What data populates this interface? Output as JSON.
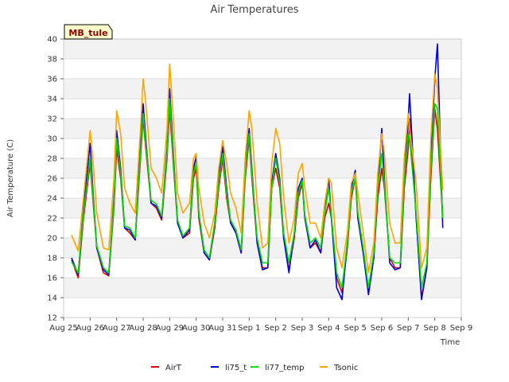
{
  "chart_data": {
    "type": "line",
    "title": "Air Temperatures",
    "xlabel": "Time",
    "ylabel": "Air Temperature (C)",
    "site_tag": "MB_tule",
    "ylim": [
      12,
      40
    ],
    "yticks": [
      12,
      14,
      16,
      18,
      20,
      22,
      24,
      26,
      28,
      30,
      32,
      34,
      36,
      38,
      40
    ],
    "xlim": [
      0,
      15
    ],
    "xticks": [
      {
        "x": 0,
        "label": "Aug 25"
      },
      {
        "x": 1,
        "label": "Aug 26"
      },
      {
        "x": 2,
        "label": "Aug 27"
      },
      {
        "x": 3,
        "label": "Aug 28"
      },
      {
        "x": 4,
        "label": "Aug 29"
      },
      {
        "x": 5,
        "label": "Aug 30"
      },
      {
        "x": 6,
        "label": "Aug 31"
      },
      {
        "x": 7,
        "label": "Sep 1"
      },
      {
        "x": 8,
        "label": "Sep 2"
      },
      {
        "x": 9,
        "label": "Sep 3"
      },
      {
        "x": 10,
        "label": "Sep 4"
      },
      {
        "x": 11,
        "label": "Sep 5"
      },
      {
        "x": 12,
        "label": "Sep 6"
      },
      {
        "x": 13,
        "label": "Sep 7"
      },
      {
        "x": 14,
        "label": "Sep 8"
      },
      {
        "x": 15,
        "label": "Sep 9"
      }
    ],
    "x_units": "days since Aug 25",
    "grid": "horizontal bands",
    "legend_position": "bottom",
    "series": [
      {
        "name": "AirT",
        "color": "#dd0000",
        "x": [
          0.3,
          0.55,
          0.75,
          1.0,
          1.1,
          1.25,
          1.5,
          1.7,
          1.9,
          2.0,
          2.15,
          2.3,
          2.5,
          2.7,
          2.9,
          3.0,
          3.1,
          3.3,
          3.5,
          3.7,
          3.9,
          4.0,
          4.15,
          4.3,
          4.5,
          4.75,
          4.9,
          5.0,
          5.1,
          5.3,
          5.5,
          5.7,
          5.85,
          6.0,
          6.15,
          6.3,
          6.5,
          6.7,
          6.85,
          7.0,
          7.1,
          7.3,
          7.5,
          7.7,
          7.85,
          8.0,
          8.15,
          8.3,
          8.5,
          8.7,
          8.85,
          9.0,
          9.1,
          9.3,
          9.5,
          9.7,
          9.85,
          10.0,
          10.1,
          10.3,
          10.5,
          10.7,
          10.85,
          11.0,
          11.1,
          11.3,
          11.5,
          11.7,
          11.85,
          12.0,
          12.1,
          12.3,
          12.5,
          12.7,
          12.85,
          13.0,
          13.05,
          13.3,
          13.5,
          13.7,
          13.85,
          14.0,
          14.1,
          14.3
        ],
        "y": [
          17.8,
          16.0,
          22.0,
          27.5,
          24.0,
          19.0,
          16.5,
          16.2,
          23.0,
          29.0,
          26.0,
          21.0,
          20.5,
          19.8,
          28.0,
          32.0,
          29.0,
          23.5,
          23.0,
          21.8,
          28.0,
          33.0,
          27.0,
          21.5,
          20.0,
          20.5,
          26.0,
          27.0,
          22.0,
          18.5,
          17.8,
          21.0,
          25.0,
          28.0,
          24.0,
          21.5,
          20.5,
          18.5,
          26.0,
          30.0,
          26.0,
          19.5,
          17.0,
          17.0,
          25.0,
          27.0,
          25.0,
          20.0,
          16.8,
          20.0,
          24.0,
          25.5,
          22.0,
          19.0,
          19.5,
          18.5,
          22.0,
          23.5,
          22.0,
          16.0,
          14.5,
          19.0,
          24.0,
          26.0,
          22.0,
          18.5,
          14.5,
          18.0,
          24.0,
          27.0,
          25.0,
          18.0,
          17.0,
          17.0,
          25.0,
          29.0,
          32.0,
          22.0,
          14.0,
          17.0,
          26.0,
          33.0,
          31.0,
          22.0
        ]
      },
      {
        "name": "li75_t",
        "color": "#0000dd",
        "x": [
          0.3,
          0.55,
          0.75,
          1.0,
          1.1,
          1.25,
          1.5,
          1.7,
          1.9,
          2.0,
          2.15,
          2.3,
          2.5,
          2.7,
          2.9,
          3.0,
          3.1,
          3.3,
          3.5,
          3.7,
          3.9,
          4.0,
          4.15,
          4.3,
          4.5,
          4.75,
          4.9,
          5.0,
          5.1,
          5.3,
          5.5,
          5.7,
          5.85,
          6.0,
          6.15,
          6.3,
          6.5,
          6.7,
          6.85,
          7.0,
          7.1,
          7.3,
          7.5,
          7.7,
          7.85,
          8.0,
          8.15,
          8.3,
          8.5,
          8.7,
          8.85,
          9.0,
          9.1,
          9.3,
          9.5,
          9.7,
          9.85,
          10.0,
          10.1,
          10.3,
          10.5,
          10.7,
          10.85,
          11.0,
          11.1,
          11.3,
          11.5,
          11.7,
          11.85,
          12.0,
          12.1,
          12.3,
          12.5,
          12.7,
          12.85,
          13.0,
          13.05,
          13.3,
          13.5,
          13.7,
          13.85,
          14.0,
          14.1,
          14.3
        ],
        "y": [
          18.0,
          16.3,
          23.0,
          29.5,
          25.0,
          19.0,
          16.8,
          16.3,
          24.0,
          30.8,
          27.0,
          21.0,
          20.8,
          19.8,
          29.5,
          33.5,
          30.0,
          23.5,
          23.2,
          22.0,
          29.0,
          35.0,
          28.0,
          21.5,
          20.0,
          20.8,
          27.0,
          28.2,
          22.5,
          18.5,
          17.8,
          21.5,
          26.0,
          29.2,
          25.0,
          21.5,
          20.5,
          18.5,
          27.0,
          31.0,
          27.0,
          19.5,
          16.8,
          17.0,
          25.5,
          28.5,
          26.0,
          20.0,
          16.5,
          20.5,
          25.0,
          26.0,
          22.0,
          19.0,
          19.8,
          18.5,
          23.0,
          26.0,
          22.0,
          15.0,
          13.8,
          19.5,
          25.0,
          26.8,
          22.0,
          18.5,
          14.3,
          18.0,
          25.0,
          31.0,
          26.0,
          17.5,
          16.8,
          17.0,
          26.0,
          32.0,
          34.5,
          22.0,
          13.8,
          17.0,
          28.0,
          36.0,
          39.5,
          21.0
        ]
      },
      {
        "name": "li77_temp",
        "color": "#00dd00",
        "x": [
          0.3,
          0.55,
          0.75,
          1.0,
          1.1,
          1.25,
          1.5,
          1.7,
          1.9,
          2.0,
          2.15,
          2.3,
          2.5,
          2.7,
          2.9,
          3.0,
          3.1,
          3.3,
          3.5,
          3.7,
          3.9,
          4.0,
          4.15,
          4.3,
          4.5,
          4.75,
          4.9,
          5.0,
          5.1,
          5.3,
          5.5,
          5.7,
          5.85,
          6.0,
          6.15,
          6.3,
          6.5,
          6.7,
          6.85,
          7.0,
          7.1,
          7.3,
          7.5,
          7.7,
          7.85,
          8.0,
          8.15,
          8.3,
          8.5,
          8.7,
          8.85,
          9.0,
          9.1,
          9.3,
          9.5,
          9.7,
          9.85,
          10.0,
          10.1,
          10.3,
          10.5,
          10.7,
          10.85,
          11.0,
          11.1,
          11.3,
          11.5,
          11.7,
          11.85,
          12.0,
          12.1,
          12.3,
          12.5,
          12.7,
          12.85,
          13.0,
          13.05,
          13.3,
          13.5,
          13.7,
          13.85,
          14.0,
          14.1,
          14.3
        ],
        "y": [
          17.6,
          16.5,
          22.5,
          28.0,
          24.5,
          19.2,
          17.0,
          16.5,
          23.5,
          30.0,
          26.5,
          21.2,
          21.0,
          20.0,
          28.5,
          32.5,
          29.5,
          23.8,
          23.4,
          22.2,
          28.5,
          34.0,
          27.5,
          21.8,
          20.2,
          21.0,
          26.5,
          27.5,
          22.5,
          18.8,
          18.0,
          21.5,
          25.5,
          28.5,
          24.5,
          21.8,
          20.8,
          18.8,
          26.5,
          30.5,
          26.5,
          20.0,
          17.5,
          17.5,
          25.0,
          28.0,
          25.5,
          20.5,
          17.5,
          20.5,
          24.5,
          25.8,
          22.3,
          19.5,
          20.0,
          19.0,
          22.5,
          25.0,
          22.3,
          16.5,
          15.0,
          19.5,
          24.5,
          26.0,
          22.5,
          19.0,
          15.0,
          18.5,
          25.0,
          28.5,
          25.5,
          18.0,
          17.5,
          17.5,
          26.0,
          30.5,
          30.0,
          22.5,
          15.0,
          17.5,
          27.0,
          33.5,
          33.0,
          22.0
        ]
      },
      {
        "name": "Tsonic",
        "color": "#ffa500",
        "x": [
          0.3,
          0.55,
          0.75,
          1.0,
          1.1,
          1.25,
          1.5,
          1.7,
          1.9,
          2.0,
          2.15,
          2.3,
          2.5,
          2.7,
          2.9,
          3.0,
          3.1,
          3.3,
          3.5,
          3.7,
          3.9,
          4.0,
          4.15,
          4.3,
          4.5,
          4.75,
          4.9,
          5.0,
          5.1,
          5.3,
          5.5,
          5.7,
          5.85,
          6.0,
          6.15,
          6.3,
          6.5,
          6.7,
          6.85,
          7.0,
          7.1,
          7.3,
          7.5,
          7.7,
          7.85,
          8.0,
          8.15,
          8.3,
          8.5,
          8.7,
          8.85,
          9.0,
          9.1,
          9.3,
          9.5,
          9.7,
          9.85,
          10.0,
          10.1,
          10.3,
          10.5,
          10.7,
          10.85,
          11.0,
          11.1,
          11.3,
          11.5,
          11.7,
          11.85,
          12.0,
          12.1,
          12.3,
          12.5,
          12.7,
          12.85,
          13.0,
          13.05,
          13.3,
          13.5,
          13.7,
          13.85,
          14.0,
          14.1,
          14.3
        ],
        "y": [
          20.3,
          18.7,
          24.0,
          30.8,
          28.0,
          22.5,
          19.0,
          18.8,
          26.0,
          32.8,
          30.5,
          25.0,
          23.5,
          22.5,
          31.0,
          36.0,
          33.5,
          27.0,
          26.0,
          24.5,
          31.0,
          37.5,
          31.5,
          24.5,
          22.5,
          23.5,
          28.0,
          28.5,
          25.0,
          21.5,
          20.0,
          22.5,
          27.0,
          29.8,
          27.5,
          24.5,
          23.0,
          20.5,
          28.0,
          32.8,
          31.0,
          23.5,
          19.0,
          19.5,
          27.5,
          31.0,
          29.5,
          24.0,
          19.5,
          22.0,
          26.5,
          27.5,
          25.0,
          21.5,
          21.5,
          20.0,
          23.5,
          26.0,
          25.5,
          19.0,
          17.0,
          20.5,
          25.5,
          26.5,
          24.5,
          20.5,
          16.5,
          19.5,
          26.5,
          30.5,
          28.5,
          21.5,
          19.5,
          19.5,
          28.0,
          32.5,
          31.0,
          25.5,
          17.0,
          19.0,
          30.0,
          36.5,
          35.0,
          24.8
        ]
      }
    ]
  }
}
